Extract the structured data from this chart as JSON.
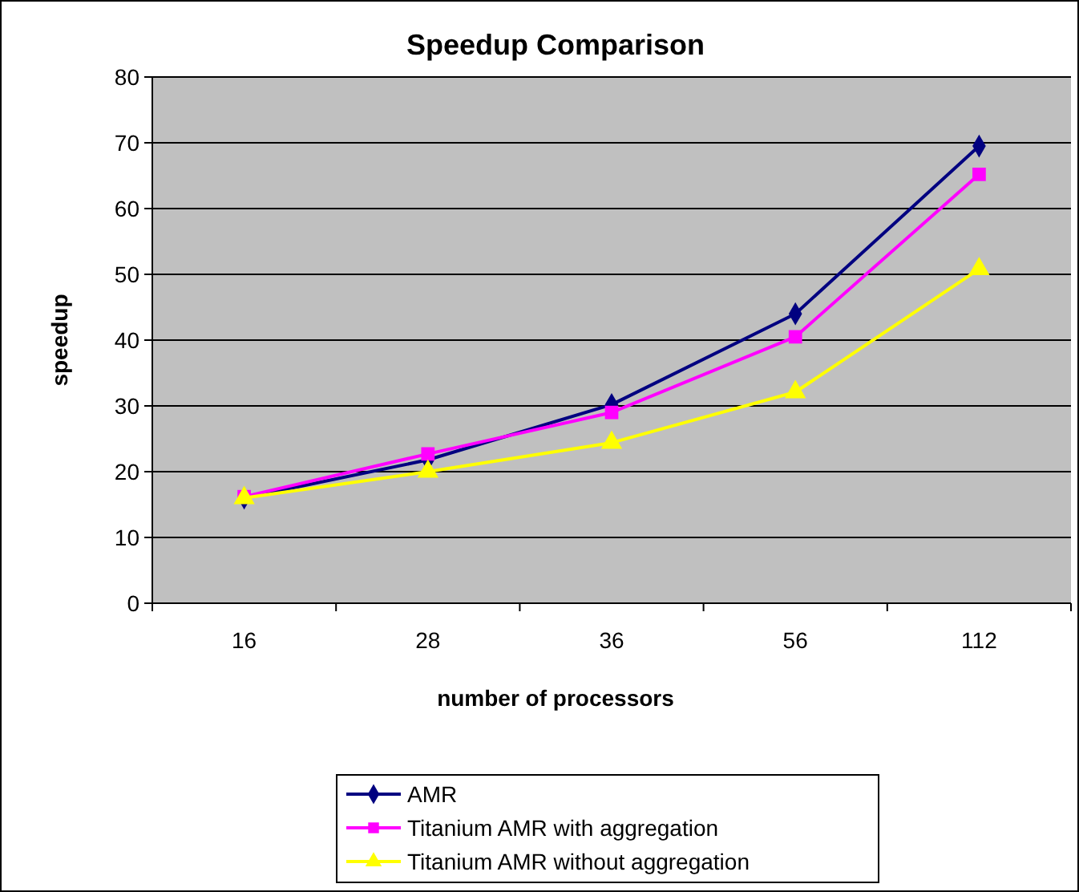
{
  "chart_data": {
    "type": "line",
    "title": "Speedup Comparison",
    "xlabel": "number of processors",
    "ylabel": "speedup",
    "categories": [
      "16",
      "28",
      "36",
      "56",
      "112"
    ],
    "ylim": [
      0,
      80
    ],
    "yticks": [
      0,
      10,
      20,
      30,
      40,
      50,
      60,
      70,
      80
    ],
    "grid": "y",
    "legend": "bottom",
    "series": [
      {
        "name": "AMR",
        "color": "#000080",
        "marker": "diamond",
        "values": [
          16,
          21.8,
          30.2,
          44,
          69.5
        ]
      },
      {
        "name": "Titanium AMR with aggregation",
        "color": "#ff00ff",
        "marker": "square",
        "values": [
          16.2,
          22.7,
          29,
          40.5,
          65.2
        ]
      },
      {
        "name": "Titanium AMR without aggregation",
        "color": "#ffff00",
        "marker": "triangle",
        "values": [
          16,
          20,
          24.4,
          32.1,
          50.8
        ]
      }
    ]
  }
}
